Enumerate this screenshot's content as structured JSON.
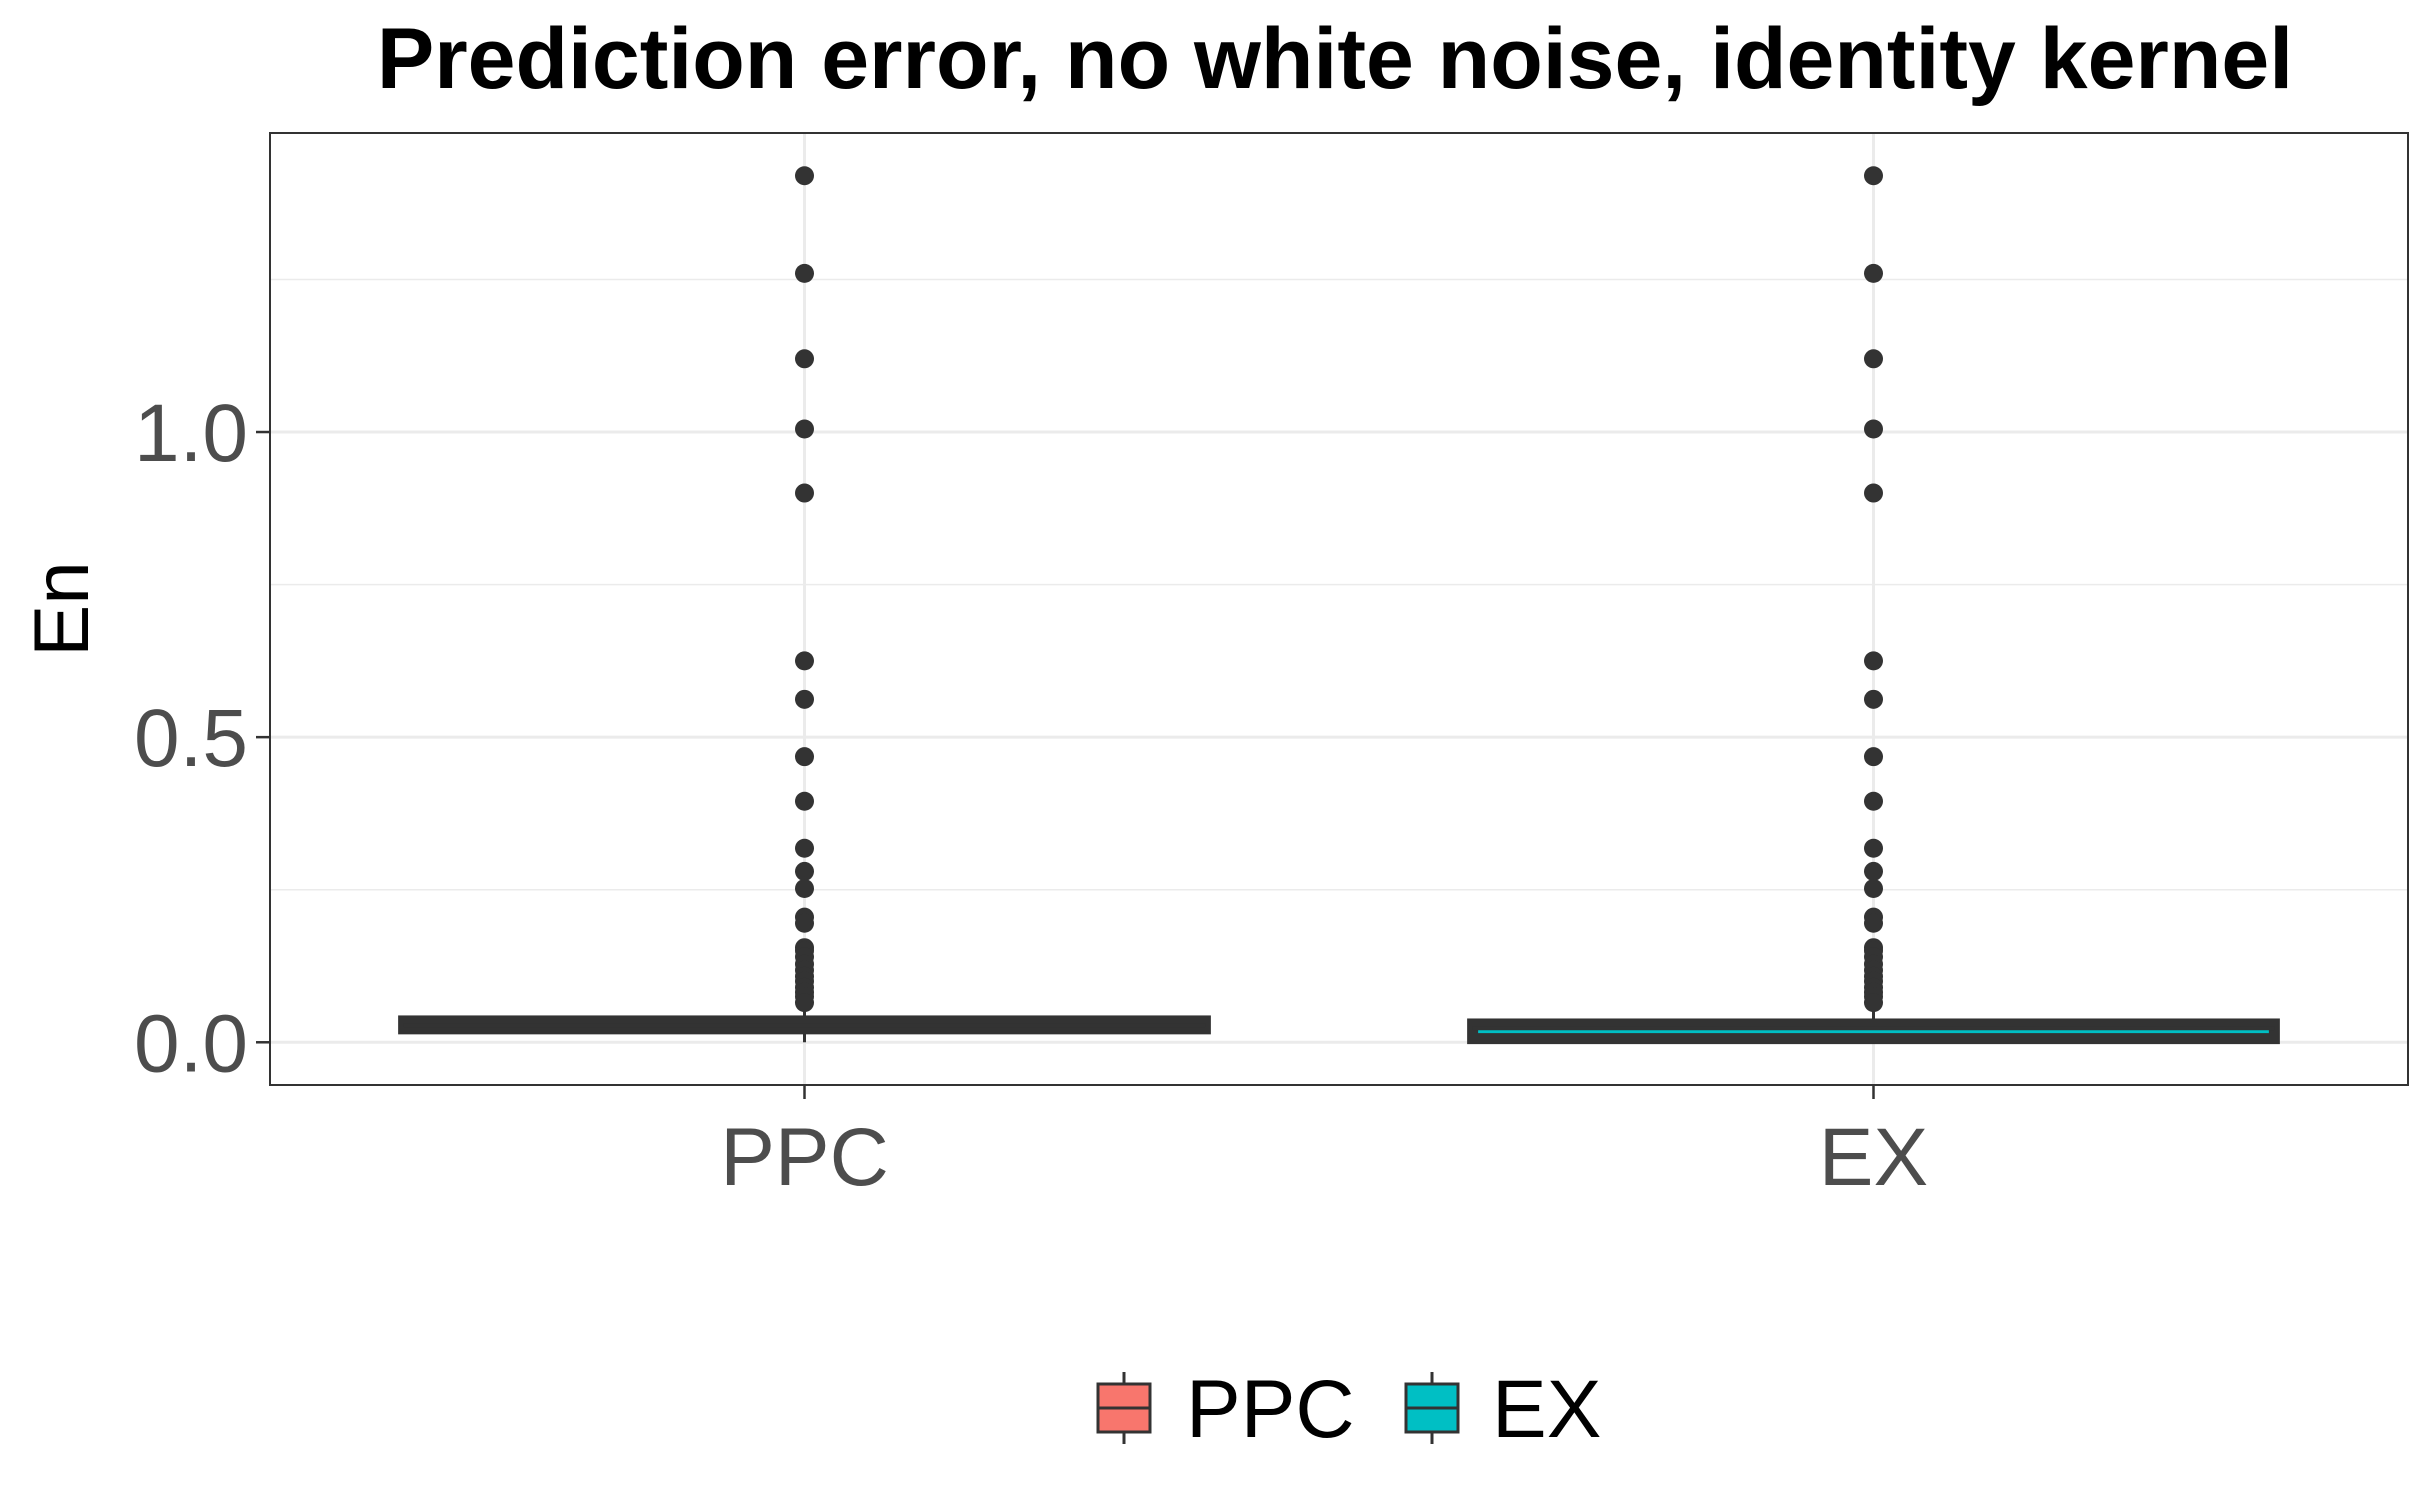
{
  "chart_data": {
    "type": "boxplot",
    "title": "Prediction error, no white noise, identity kernel",
    "xlabel": "",
    "ylabel": "En",
    "ylim": [
      -0.07,
      1.49
    ],
    "yticks": [
      0.0,
      0.5,
      1.0
    ],
    "ytick_labels": [
      "0.0",
      "0.5",
      "1.0"
    ],
    "minor_yticks": [
      0.25,
      0.75,
      1.25
    ],
    "categories": [
      "PPC",
      "EX"
    ],
    "grid": true,
    "legend_position": "bottom",
    "series": [
      {
        "name": "PPC",
        "color": "#f8766d",
        "box": {
          "lower_whisker": 0.0,
          "q1": 0.022,
          "median": 0.028,
          "q3": 0.035,
          "upper_whisker": 0.06
        },
        "outliers": [
          1.42,
          1.26,
          1.12,
          1.005,
          0.9,
          0.625,
          0.562,
          0.468,
          0.395,
          0.318,
          0.28,
          0.252,
          0.205,
          0.195,
          0.155,
          0.15,
          0.14,
          0.128,
          0.118,
          0.108,
          0.1,
          0.09,
          0.082,
          0.075,
          0.065
        ]
      },
      {
        "name": "EX",
        "color": "#00bfc4",
        "box": {
          "lower_whisker": 0.0,
          "q1": 0.006,
          "median": 0.023,
          "q3": 0.03,
          "upper_whisker": 0.06
        },
        "outliers": [
          1.42,
          1.26,
          1.12,
          1.005,
          0.9,
          0.625,
          0.562,
          0.468,
          0.395,
          0.318,
          0.28,
          0.252,
          0.205,
          0.195,
          0.155,
          0.15,
          0.14,
          0.128,
          0.118,
          0.108,
          0.1,
          0.09,
          0.082,
          0.075,
          0.065
        ]
      }
    ]
  }
}
